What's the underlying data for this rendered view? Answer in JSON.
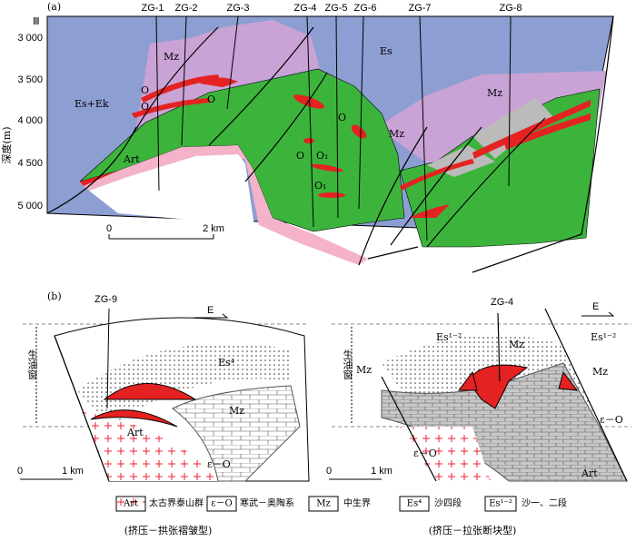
{
  "panel_a": {
    "label": "(a)",
    "section": "Ⅲ",
    "wells": [
      "ZG-1",
      "ZG-2",
      "ZG-3",
      "ZG-4",
      "ZG-5",
      "ZG-6",
      "ZG-7",
      "ZG-8"
    ],
    "depth_axis": {
      "title": "深度(m)",
      "ticks": [
        "3 000",
        "3 500",
        "4 000",
        "4 500",
        "5 000"
      ]
    },
    "labels": [
      "Es",
      "Mz",
      "Es+Ek",
      "O",
      "O",
      "O",
      "O",
      "O",
      "O₁",
      "O₁",
      "Mz",
      "Mz",
      "Art"
    ],
    "scale": [
      "0",
      "2 km"
    ]
  },
  "panel_b": {
    "label": "(b)",
    "left": {
      "well": "ZG-9",
      "direction": "E",
      "window": "生油窗",
      "labels": [
        "Es⁴",
        "Mz",
        "Art",
        "ε－O"
      ],
      "scale": [
        "0",
        "1 km"
      ]
    },
    "right": {
      "well": "ZG-4",
      "direction": "E",
      "window": "生油窗",
      "labels": [
        "Es¹⁻²",
        "Es¹⁻²",
        "Mz",
        "Mz",
        "Mz",
        "ε－O",
        "ε－O",
        "Art"
      ],
      "scale": [
        "0",
        "1 km"
      ]
    },
    "legend": [
      {
        "symbol": "Art",
        "text": "太古界泰山群"
      },
      {
        "symbol": "ε－O",
        "text": "寒武－奥陶系"
      },
      {
        "symbol": "Mz",
        "text": "中生界"
      },
      {
        "symbol": "Es⁴",
        "text": "沙四段"
      },
      {
        "symbol": "Es¹⁻²",
        "text": "沙一、二段"
      }
    ],
    "captions": [
      "(挤压－拱张褶皱型)",
      "(挤压－拉张断块型)"
    ]
  }
}
